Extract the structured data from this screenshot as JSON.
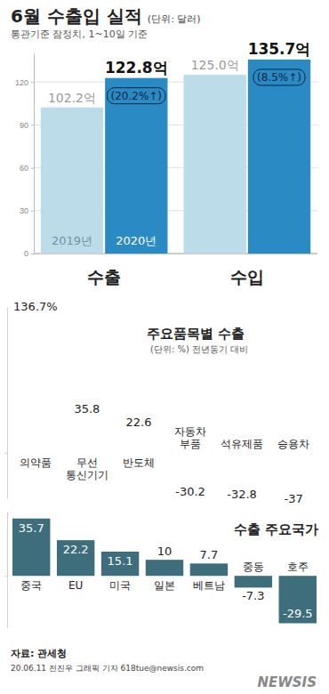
{
  "header": {
    "title": "6월 수출입 실적",
    "unit": "(단위: 달러)",
    "subtitle": "통관기준 잠정치, 1~10일 기준"
  },
  "chart_data": [
    {
      "type": "bar",
      "categories": [
        "수출",
        "수입"
      ],
      "series": [
        {
          "name": "2019년",
          "color": "#bcdcea",
          "values": [
            102.2,
            125.0
          ],
          "value_labels": [
            "102.2억",
            "125.0억"
          ]
        },
        {
          "name": "2020년",
          "color": "#2a8ac4",
          "values": [
            122.8,
            135.7
          ],
          "value_labels": [
            "122.8억",
            "135.7억"
          ],
          "annotations": [
            "(20.2%↑)",
            "(8.5%↑)"
          ]
        }
      ],
      "ylim": [
        0,
        140
      ],
      "yticks": [
        0,
        30,
        60,
        90,
        120
      ],
      "grid": true,
      "data_labels": true
    },
    {
      "type": "bar",
      "title": "주요품목별 수출",
      "subtitle": "(단위: %) 전년동기 대비",
      "categories": [
        "의약품",
        "무선 통신기기",
        "반도체",
        "자동차 부품",
        "석유제품",
        "승용차"
      ],
      "values": [
        136.7,
        35.8,
        22.6,
        -30.2,
        -32.8,
        -37
      ],
      "value_labels": [
        "136.7%",
        "35.8",
        "22.6",
        "-30.2",
        "-32.8",
        "-37"
      ],
      "color": "#2d9ad6",
      "ylim": [
        -45,
        145
      ],
      "yticks": [
        0
      ],
      "tick_labels": false,
      "data_labels": true
    },
    {
      "type": "bar",
      "title": "수출 주요국가",
      "categories": [
        "중국",
        "EU",
        "미국",
        "일본",
        "베트남",
        "중동",
        "호주"
      ],
      "values": [
        35.7,
        22.2,
        15.1,
        10,
        7.7,
        -7.3,
        -29.5
      ],
      "color": "#3e6d7b",
      "ylim": [
        -32,
        40
      ],
      "yticks": [
        0
      ],
      "tick_labels": false,
      "data_labels": true
    }
  ],
  "footer": {
    "source": "자료: 관세청",
    "credit": "20.06.11 전진우 그래픽 기자 618tue@newsis.com",
    "logo": "NEWSIS"
  }
}
